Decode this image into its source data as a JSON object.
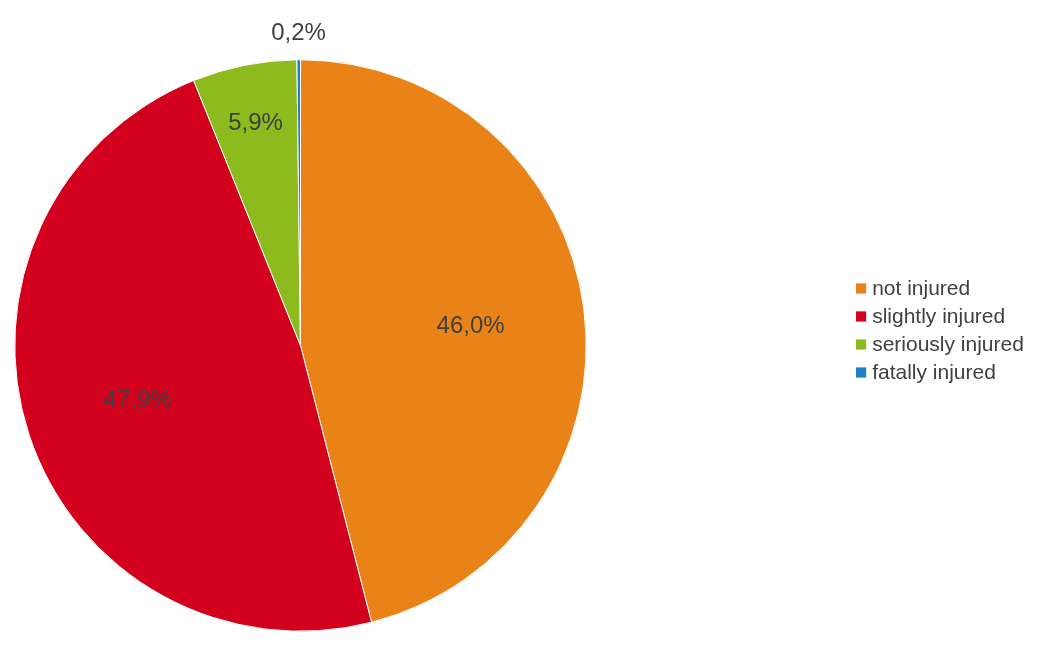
{
  "chart_data": {
    "type": "pie",
    "categories": [
      "not injured",
      "slightly injured",
      "seriously injured",
      "fatally injured"
    ],
    "values": [
      46.0,
      47.9,
      5.9,
      0.2
    ],
    "colors": [
      "#ea8317",
      "#d2001c",
      "#8dbb1d",
      "#1e7fc8"
    ],
    "value_labels": [
      "46,0%",
      "47,9%",
      "5,9%",
      "0,2%"
    ],
    "legend": "right"
  }
}
